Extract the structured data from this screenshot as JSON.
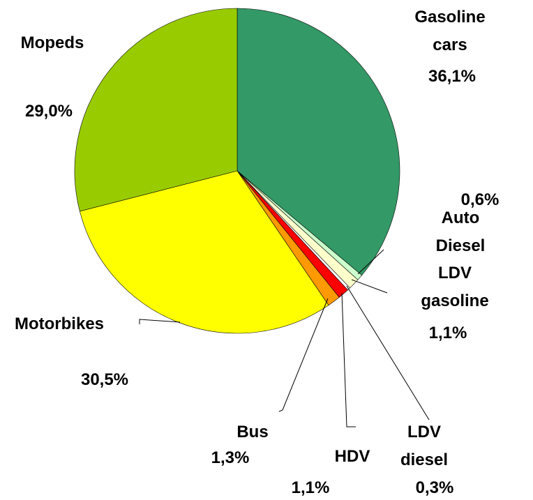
{
  "chart_data": {
    "type": "pie",
    "categories": [
      "Gasoline cars",
      "Auto Diesel",
      "LDV gasoline",
      "LDV diesel",
      "HDV",
      "Bus",
      "Motorbikes",
      "Mopeds"
    ],
    "values": [
      36.1,
      0.6,
      1.1,
      0.3,
      1.1,
      1.3,
      30.5,
      29.0
    ],
    "value_labels": [
      "36,1%",
      "0,6%",
      "1,1%",
      "0,3%",
      "1,1%",
      "1,3%",
      "30,5%",
      "29,0%"
    ],
    "colors": [
      "#339966",
      "#ccffcc",
      "#ffffcc",
      "#ffffff",
      "#ff0000",
      "#ff9900",
      "#ffff00",
      "#99cc00"
    ]
  }
}
